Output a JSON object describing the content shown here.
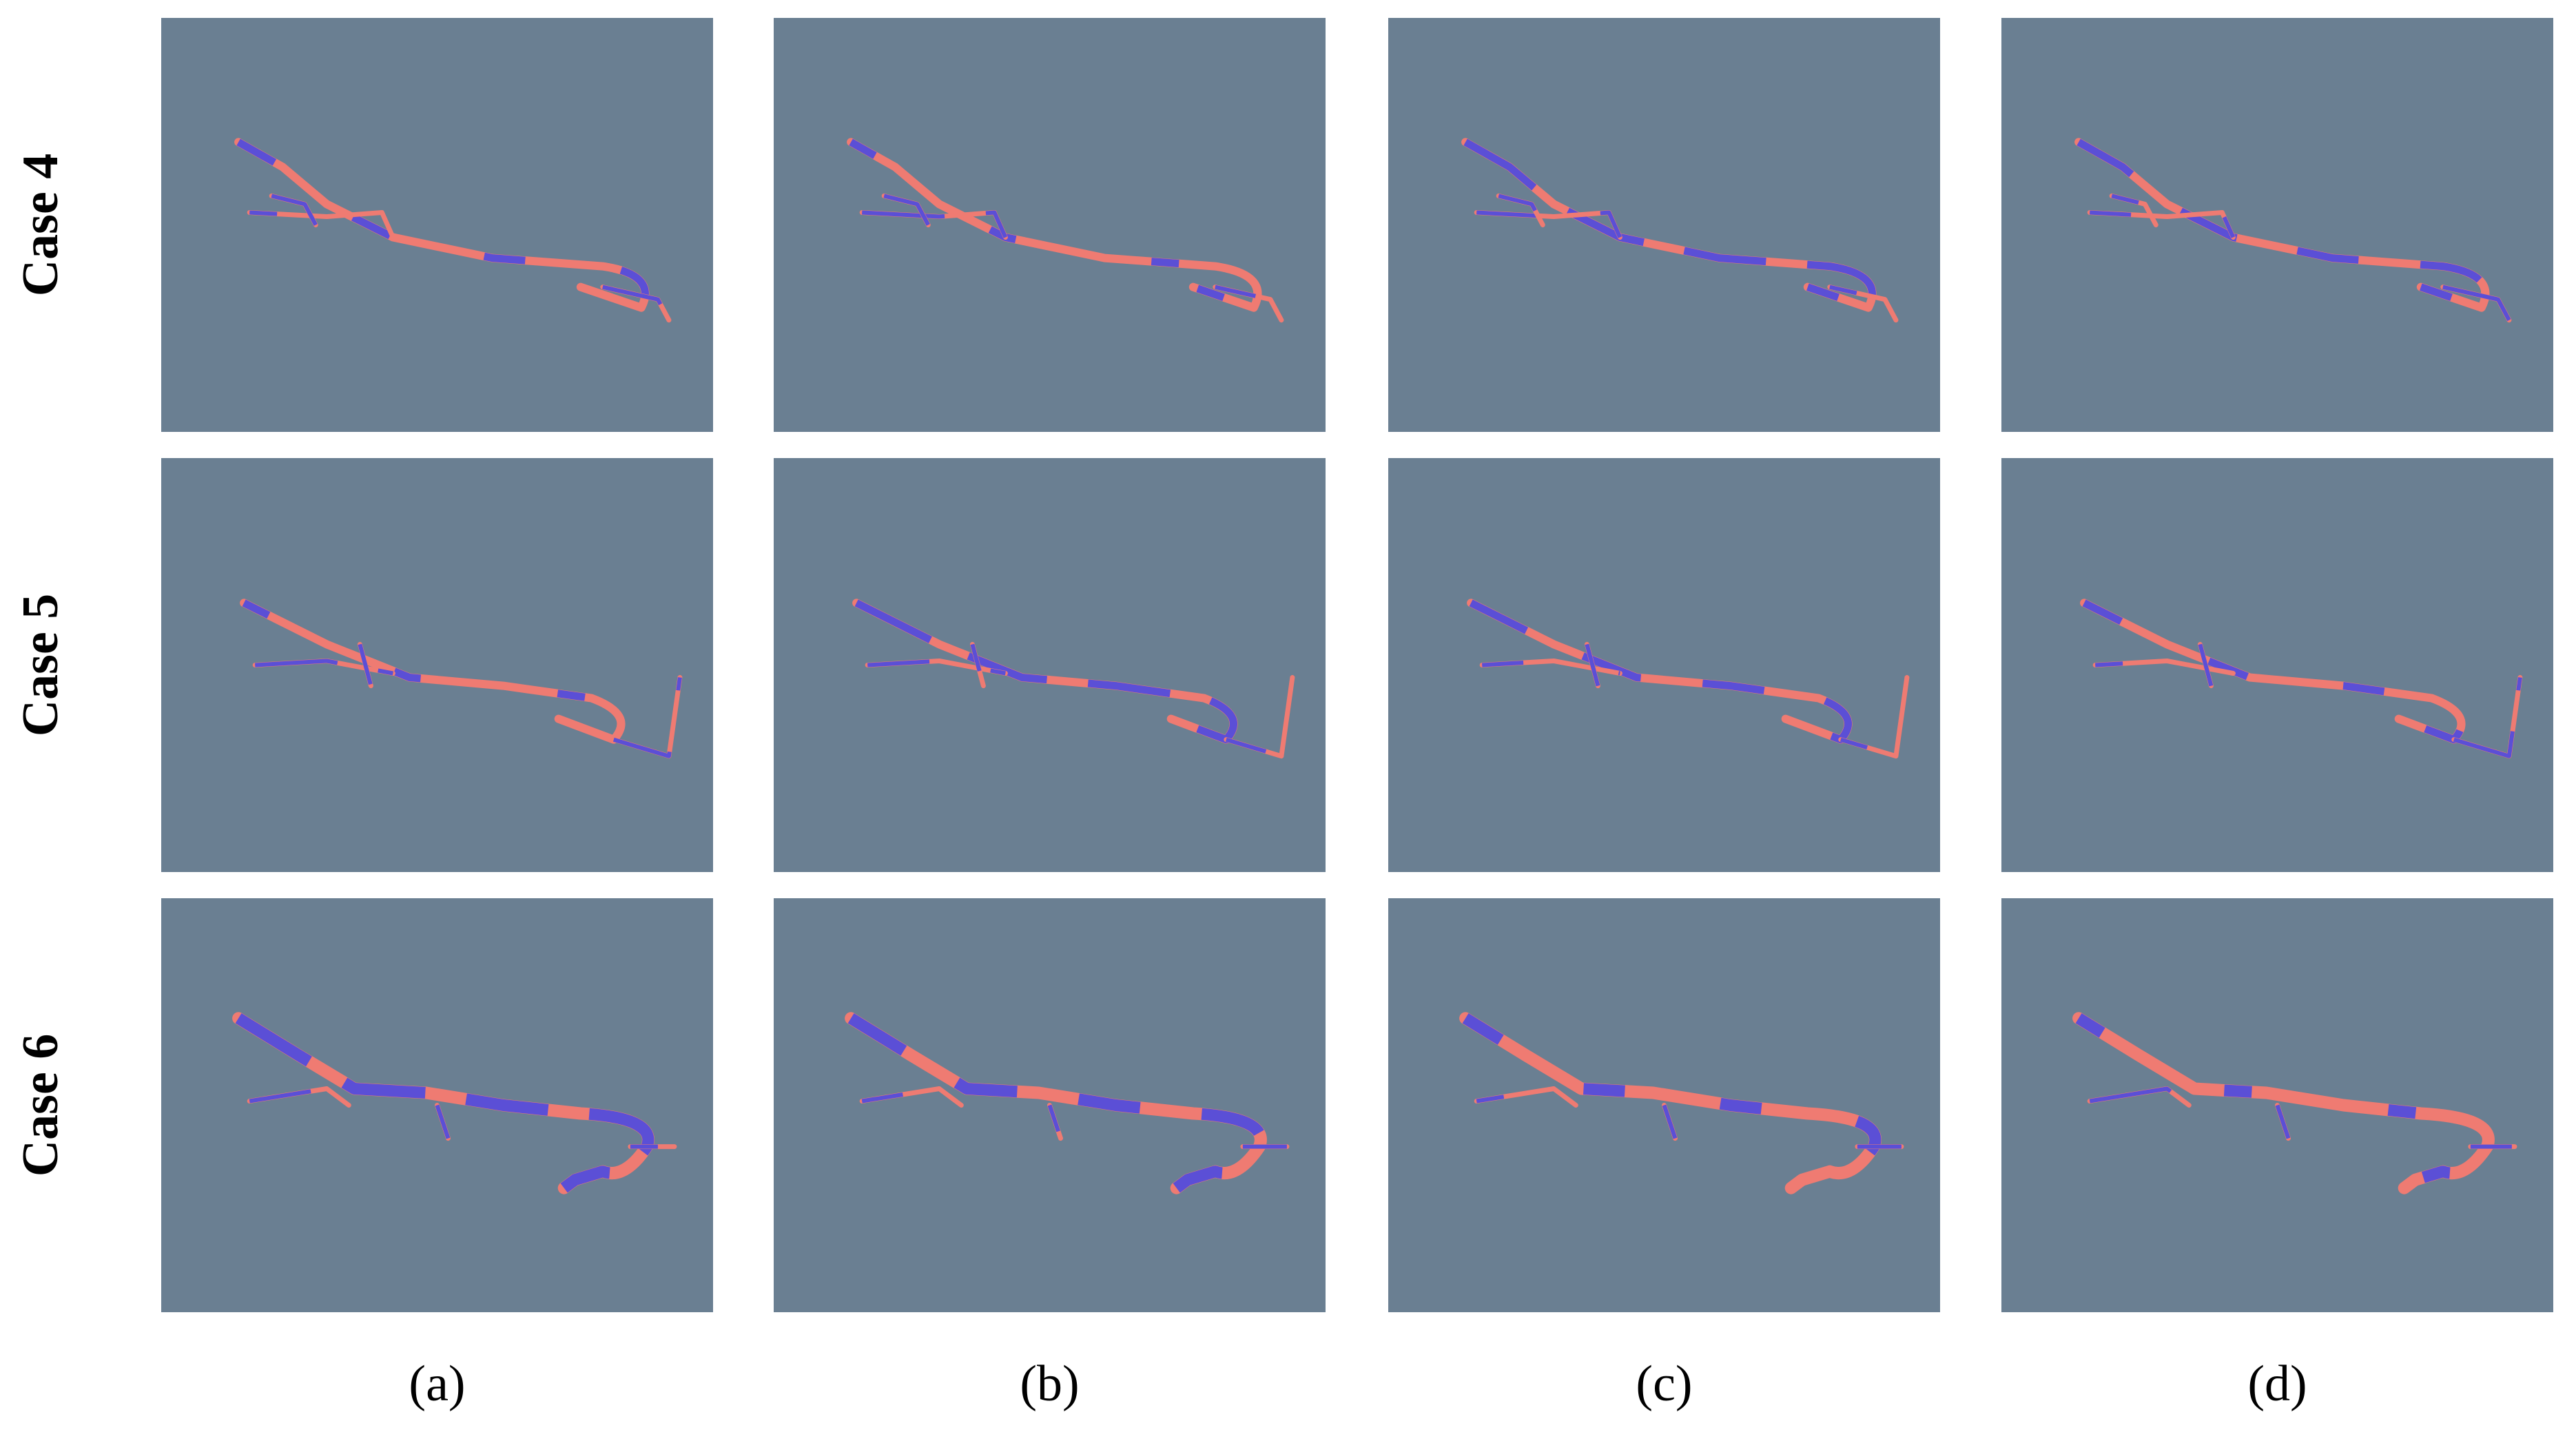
{
  "figure": {
    "rows": [
      "Case 4",
      "Case 5",
      "Case 6"
    ],
    "columns": [
      "(a)",
      "(b)",
      "(c)",
      "(d)"
    ]
  }
}
